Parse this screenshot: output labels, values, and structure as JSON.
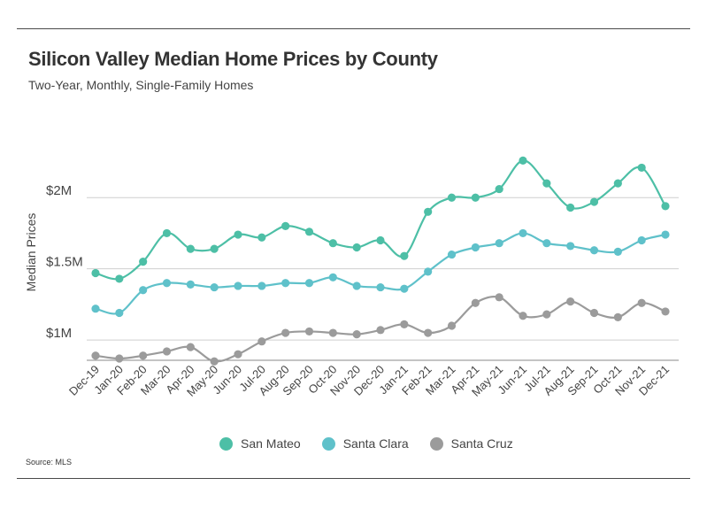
{
  "header": {
    "title": "Silicon Valley Median Home Prices by County",
    "subtitle": "Two-Year, Monthly, Single-Family Homes"
  },
  "source": "Source:  MLS",
  "chart_data": {
    "type": "line",
    "title": "Silicon Valley Median Home Prices by County",
    "subtitle": "Two-Year, Monthly, Single-Family Homes",
    "xlabel": "",
    "ylabel": "Median Prices",
    "ylim": [
      0.87,
      2.25
    ],
    "yticks": [
      {
        "value": 1.0,
        "label": "$1M"
      },
      {
        "value": 1.5,
        "label": "$1.5M"
      },
      {
        "value": 2.0,
        "label": "$2M"
      }
    ],
    "grid": true,
    "legend_position": "bottom",
    "categories": [
      "Dec-19",
      "Jan-20",
      "Feb-20",
      "Mar-20",
      "Apr-20",
      "May-20",
      "Jun-20",
      "Jul-20",
      "Aug-20",
      "Sep-20",
      "Oct-20",
      "Nov-20",
      "Dec-20",
      "Jan-21",
      "Feb-21",
      "Mar-21",
      "Apr-21",
      "May-21",
      "Jun-21",
      "Jul-21",
      "Aug-21",
      "Sep-21",
      "Oct-21",
      "Nov-21",
      "Dec-21"
    ],
    "series": [
      {
        "name": "San Mateo",
        "color": "#4dbfa6",
        "values": [
          1.47,
          1.43,
          1.55,
          1.75,
          1.64,
          1.64,
          1.74,
          1.72,
          1.8,
          1.76,
          1.68,
          1.65,
          1.7,
          1.59,
          1.9,
          2.0,
          2.0,
          2.06,
          2.26,
          2.1,
          1.93,
          1.97,
          2.1,
          2.21,
          1.94
        ]
      },
      {
        "name": "Santa Clara",
        "color": "#5fc1ca",
        "values": [
          1.22,
          1.19,
          1.35,
          1.4,
          1.39,
          1.37,
          1.38,
          1.38,
          1.4,
          1.4,
          1.44,
          1.38,
          1.37,
          1.36,
          1.48,
          1.6,
          1.65,
          1.68,
          1.75,
          1.68,
          1.66,
          1.63,
          1.62,
          1.7,
          1.74
        ]
      },
      {
        "name": "Santa Cruz",
        "color": "#9b9b9b",
        "values": [
          0.89,
          0.87,
          0.89,
          0.92,
          0.95,
          0.85,
          0.9,
          0.99,
          1.05,
          1.06,
          1.05,
          1.04,
          1.07,
          1.11,
          1.05,
          1.1,
          1.26,
          1.3,
          1.17,
          1.18,
          1.27,
          1.19,
          1.16,
          1.26,
          1.2
        ]
      }
    ]
  }
}
